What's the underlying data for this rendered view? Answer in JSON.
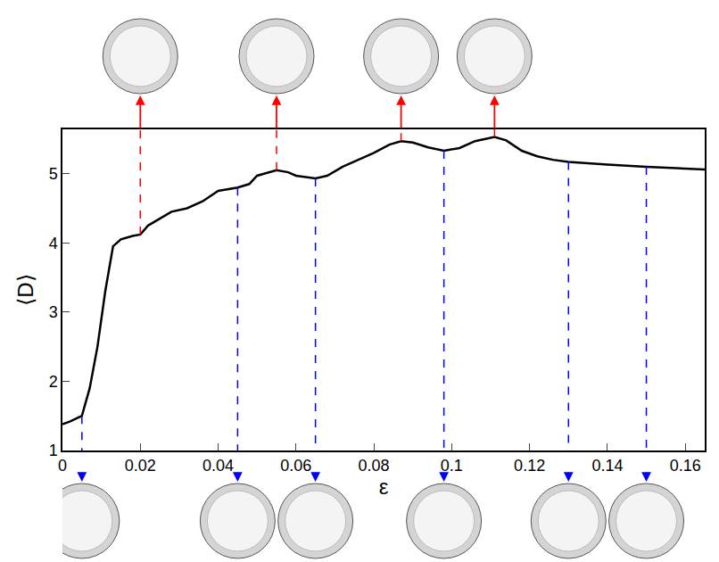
{
  "chart_data": {
    "type": "line",
    "xlabel": "ε",
    "ylabel": "⟨D⟩",
    "color": "#000000",
    "x": [
      0,
      0.002,
      0.005,
      0.007,
      0.009,
      0.011,
      0.013,
      0.015,
      0.018,
      0.02,
      0.022,
      0.025,
      0.028,
      0.032,
      0.036,
      0.04,
      0.045,
      0.048,
      0.05,
      0.055,
      0.058,
      0.06,
      0.065,
      0.068,
      0.072,
      0.076,
      0.08,
      0.084,
      0.087,
      0.09,
      0.094,
      0.098,
      0.102,
      0.106,
      0.111,
      0.114,
      0.118,
      0.122,
      0.126,
      0.13,
      0.14,
      0.15,
      0.165
    ],
    "values": [
      1.38,
      1.42,
      1.5,
      1.9,
      2.5,
      3.3,
      3.95,
      4.05,
      4.1,
      4.12,
      4.25,
      4.35,
      4.45,
      4.5,
      4.6,
      4.75,
      4.8,
      4.85,
      4.97,
      5.05,
      5.02,
      4.97,
      4.93,
      4.97,
      5.1,
      5.2,
      5.3,
      5.42,
      5.47,
      5.45,
      5.38,
      5.33,
      5.37,
      5.47,
      5.53,
      5.48,
      5.33,
      5.25,
      5.2,
      5.17,
      5.13,
      5.1,
      5.06
    ],
    "xlim": [
      0,
      0.165
    ],
    "ylim": [
      1,
      5.64
    ],
    "xticks": [
      0,
      0.02,
      0.04,
      0.06,
      0.08,
      0.1,
      0.12,
      0.14,
      0.16
    ],
    "yticks": [
      1,
      2,
      3,
      4,
      5
    ],
    "grid": false,
    "snapshots": [
      {
        "position": "above",
        "color": "#ff0000",
        "x": [
          0.02,
          0.055,
          0.087,
          0.111
        ]
      },
      {
        "position": "below",
        "color": "#0000ff",
        "x": [
          0.005,
          0.045,
          0.065,
          0.098,
          0.13,
          0.15
        ]
      }
    ]
  }
}
